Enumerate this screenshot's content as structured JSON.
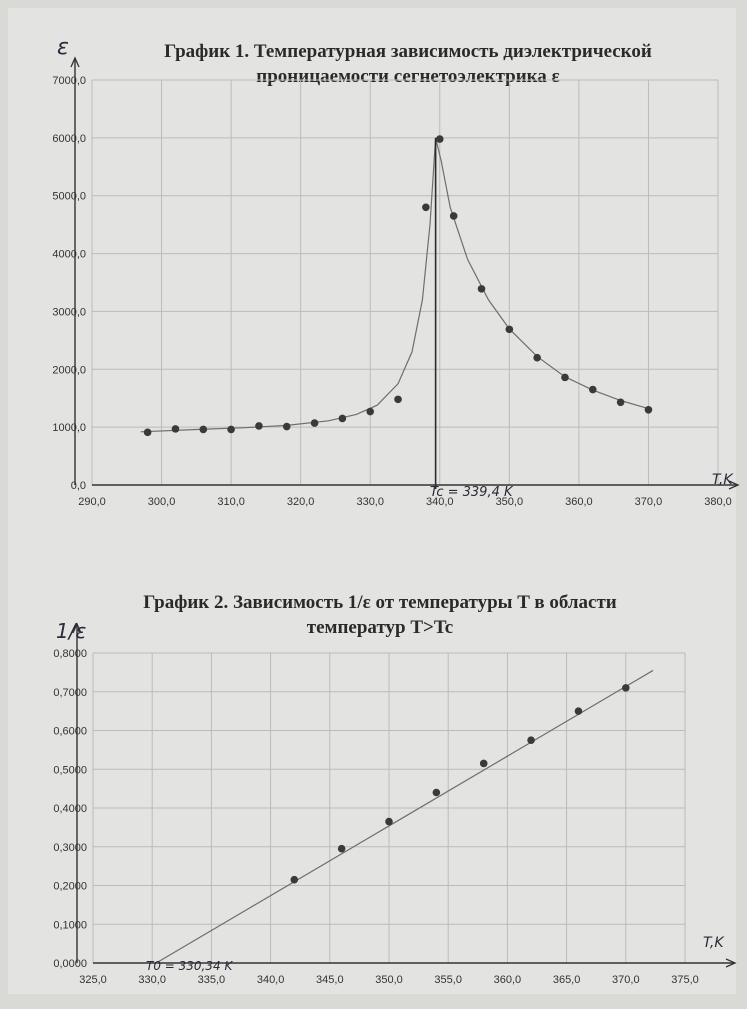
{
  "chart_data": [
    {
      "type": "scatter",
      "title_line1": "График 1. Температурная зависимость диэлектрической",
      "title_line2": "проницаемости сегнетоэлектрика ε",
      "ylabel": "ε",
      "xlabel": "T,K",
      "xlim": [
        290,
        380
      ],
      "ylim": [
        0,
        7000
      ],
      "xticks": [
        290,
        300,
        310,
        320,
        330,
        340,
        350,
        360,
        370,
        380
      ],
      "yticks": [
        0,
        1000,
        2000,
        3000,
        4000,
        5000,
        6000,
        7000
      ],
      "xtick_labels": [
        "290,0",
        "300,0",
        "310,0",
        "320,0",
        "330,0",
        "340,0",
        "350,0",
        "360,0",
        "370,0",
        "380,0"
      ],
      "ytick_labels": [
        "0,0",
        "1000,0",
        "2000,0",
        "3000,0",
        "4000,0",
        "5000,0",
        "6000,0",
        "7000,0"
      ],
      "grid": true,
      "points": [
        {
          "x": 298.0,
          "y": 910
        },
        {
          "x": 302.0,
          "y": 970
        },
        {
          "x": 306.0,
          "y": 960
        },
        {
          "x": 310.0,
          "y": 960
        },
        {
          "x": 314.0,
          "y": 1020
        },
        {
          "x": 318.0,
          "y": 1010
        },
        {
          "x": 322.0,
          "y": 1070
        },
        {
          "x": 326.0,
          "y": 1150
        },
        {
          "x": 330.0,
          "y": 1270
        },
        {
          "x": 334.0,
          "y": 1480
        },
        {
          "x": 338.0,
          "y": 4800
        },
        {
          "x": 340.0,
          "y": 5980
        },
        {
          "x": 342.0,
          "y": 4650
        },
        {
          "x": 346.0,
          "y": 3390
        },
        {
          "x": 350.0,
          "y": 2690
        },
        {
          "x": 354.0,
          "y": 2200
        },
        {
          "x": 358.0,
          "y": 1860
        },
        {
          "x": 362.0,
          "y": 1650
        },
        {
          "x": 366.0,
          "y": 1430
        },
        {
          "x": 370.0,
          "y": 1300
        }
      ],
      "fit_curve": [
        {
          "x": 297,
          "y": 920
        },
        {
          "x": 305,
          "y": 960
        },
        {
          "x": 312,
          "y": 990
        },
        {
          "x": 318,
          "y": 1030
        },
        {
          "x": 324,
          "y": 1110
        },
        {
          "x": 328,
          "y": 1220
        },
        {
          "x": 331,
          "y": 1380
        },
        {
          "x": 334,
          "y": 1750
        },
        {
          "x": 336,
          "y": 2300
        },
        {
          "x": 337.5,
          "y": 3200
        },
        {
          "x": 338.6,
          "y": 4500
        },
        {
          "x": 339.4,
          "y": 6000
        },
        {
          "x": 340.2,
          "y": 5600
        },
        {
          "x": 341.5,
          "y": 4800
        },
        {
          "x": 344,
          "y": 3900
        },
        {
          "x": 347,
          "y": 3200
        },
        {
          "x": 350,
          "y": 2700
        },
        {
          "x": 354,
          "y": 2220
        },
        {
          "x": 358,
          "y": 1870
        },
        {
          "x": 362,
          "y": 1640
        },
        {
          "x": 366,
          "y": 1460
        },
        {
          "x": 370,
          "y": 1320
        }
      ],
      "marker_x": 339.4,
      "annotation": "Tc = 339,4 K"
    },
    {
      "type": "scatter",
      "title_line1": "График 2. Зависимость 1/ε от температуры T в области",
      "title_line2": "температур T>Tc",
      "ylabel": "1/ε",
      "xlabel": "T,K",
      "xlim": [
        325,
        375
      ],
      "ylim": [
        0,
        0.8
      ],
      "xticks": [
        325,
        330,
        335,
        340,
        345,
        350,
        355,
        360,
        365,
        370,
        375
      ],
      "yticks": [
        0,
        0.1,
        0.2,
        0.3,
        0.4,
        0.5,
        0.6,
        0.7,
        0.8
      ],
      "xtick_labels": [
        "325,0",
        "330,0",
        "335,0",
        "340,0",
        "345,0",
        "350,0",
        "355,0",
        "360,0",
        "365,0",
        "370,0",
        "375,0"
      ],
      "ytick_labels": [
        "0,0000",
        "0,1000",
        "0,2000",
        "0,3000",
        "0,4000",
        "0,5000",
        "0,6000",
        "0,7000",
        "0,8000"
      ],
      "grid": true,
      "points": [
        {
          "x": 342.0,
          "y": 0.215
        },
        {
          "x": 346.0,
          "y": 0.295
        },
        {
          "x": 350.0,
          "y": 0.365
        },
        {
          "x": 354.0,
          "y": 0.44
        },
        {
          "x": 358.0,
          "y": 0.515
        },
        {
          "x": 362.0,
          "y": 0.575
        },
        {
          "x": 366.0,
          "y": 0.65
        },
        {
          "x": 370.0,
          "y": 0.71
        }
      ],
      "fit_line": [
        {
          "x": 330.34,
          "y": 0.0
        },
        {
          "x": 372.3,
          "y": 0.755
        }
      ],
      "annotation": "T0 = 330,34 K"
    }
  ]
}
